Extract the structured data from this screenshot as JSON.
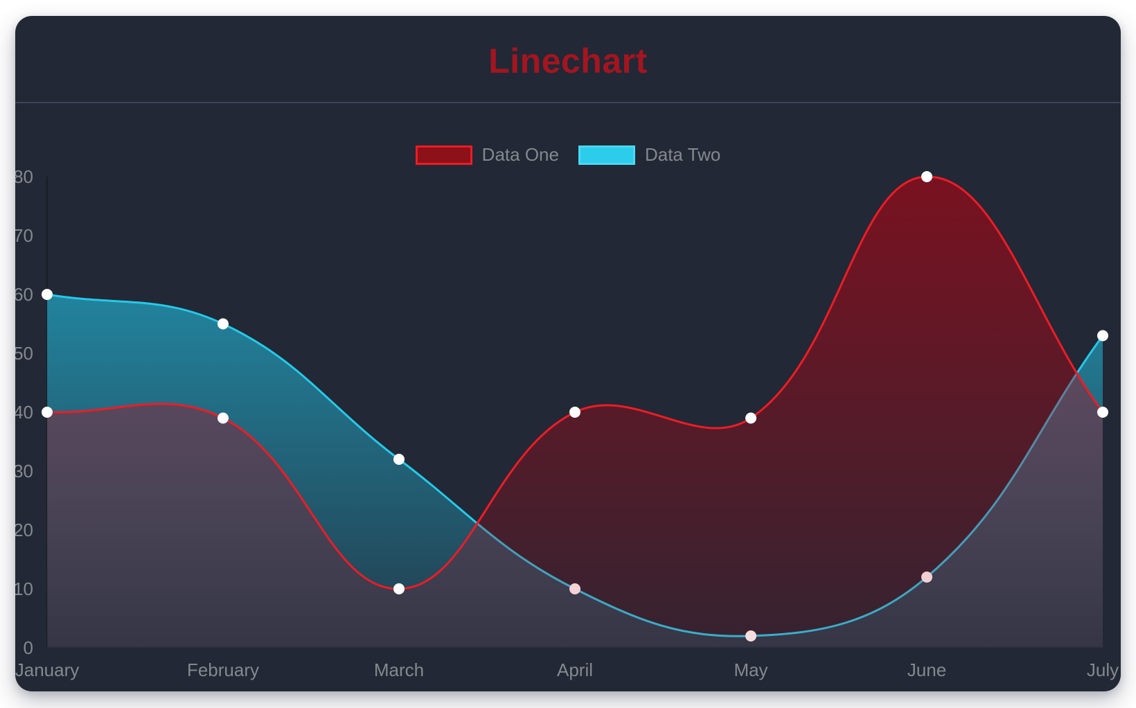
{
  "header": {
    "title": "Linechart"
  },
  "chart_data": {
    "type": "line",
    "title": "Linechart",
    "categories": [
      "January",
      "February",
      "March",
      "April",
      "May",
      "June",
      "July"
    ],
    "series": [
      {
        "name": "Data One",
        "values": [
          40,
          39,
          10,
          40,
          39,
          80,
          40
        ],
        "line_color": "#ee1c25",
        "fill_rgb": "190,0,16",
        "fill_alpha_top": 0.56,
        "fill_alpha_bottom": 0.12,
        "legend_fill": "#8c1118",
        "legend_border": "#ee1c25"
      },
      {
        "name": "Data Two",
        "values": [
          60,
          55,
          32,
          10,
          2,
          12,
          53
        ],
        "line_color": "#25c9e8",
        "fill_rgb": "34,199,235",
        "fill_alpha_top": 0.72,
        "fill_alpha_bottom": 0.13,
        "legend_fill": "#2bcdeb",
        "legend_border": "#4ad8f2"
      }
    ],
    "y_ticks": [
      0,
      10,
      20,
      30,
      40,
      50,
      60,
      70,
      80
    ],
    "ylim": [
      0,
      80
    ],
    "grid": false,
    "legend_position": "top",
    "curve_tension": 0.4,
    "point_color": "#ffffff",
    "point_radius": 8,
    "line_width": 3,
    "axis_text_color": "#85888d",
    "axis_line_color": "rgba(0,0,0,0.25)"
  },
  "colors": {
    "page_bg": "#ffffff",
    "card_bg": "#222835",
    "divider": "#3c4457",
    "title": "#a31520"
  }
}
